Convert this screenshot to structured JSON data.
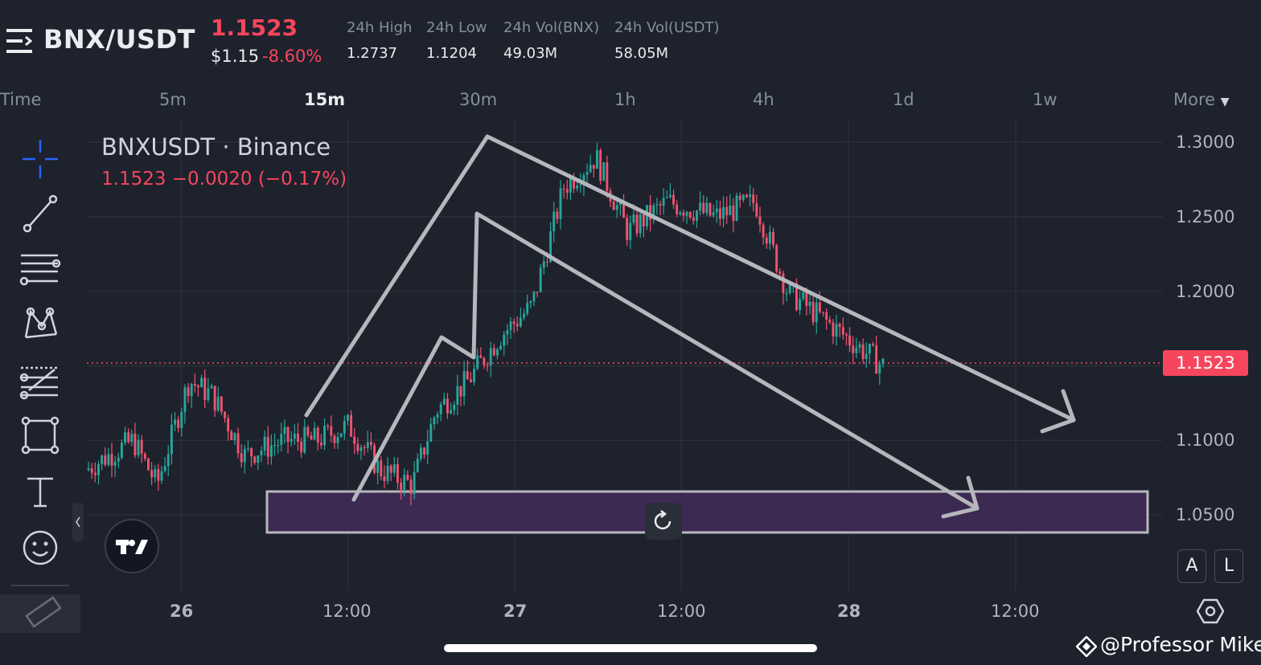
{
  "header": {
    "pair": "BNX/USDT",
    "last_price": "1.1523",
    "usd_price": "$1.15",
    "change_pct": "-8.60%",
    "stats": [
      {
        "label": "24h High",
        "value": "1.2737"
      },
      {
        "label": "24h Low",
        "value": "1.1204"
      },
      {
        "label": "24h Vol(BNX)",
        "value": "49.03M"
      },
      {
        "label": "24h Vol(USDT)",
        "value": "58.05M"
      }
    ]
  },
  "timeframes": {
    "items": [
      "Time",
      "5m",
      "15m",
      "30m",
      "1h",
      "4h",
      "1d",
      "1w"
    ],
    "active": "15m",
    "more_label": "More"
  },
  "toolbar": {
    "tools": [
      "crosshair-icon",
      "trend-line-icon",
      "fib-lines-icon",
      "pattern-icon",
      "prediction-icon",
      "rectangle-icon",
      "text-icon",
      "emoji-icon",
      "ruler-icon"
    ]
  },
  "chart": {
    "symbol_label": "BNXUSDT · Binance",
    "ohlc_line": "1.1523  −0.0020 (−0.17%)",
    "current_price_tag": "1.1523",
    "scale_buttons": [
      "A",
      "L"
    ],
    "watermark": "@Professor Mike",
    "colors": {
      "up": "#26a69a",
      "down": "#ef5370",
      "drawing": "#b6b6bd",
      "zone_fill": "#3d2a52",
      "background": "#1e222d"
    }
  },
  "chart_data": {
    "type": "candlestick",
    "y_ticks": [
      "1.3000",
      "1.2500",
      "1.2000",
      "1.1000",
      "1.0500"
    ],
    "x_ticks": [
      "26",
      "12:00",
      "27",
      "12:00",
      "28",
      "12:00"
    ],
    "ylim": [
      1.01,
      1.31
    ],
    "current_price": 1.1523,
    "anchors": [
      {
        "t": 0,
        "p": 1.08
      },
      {
        "t": 0.06,
        "p": 1.1
      },
      {
        "t": 0.09,
        "p": 1.07
      },
      {
        "t": 0.13,
        "p": 1.14
      },
      {
        "t": 0.16,
        "p": 1.13
      },
      {
        "t": 0.2,
        "p": 1.09
      },
      {
        "t": 0.25,
        "p": 1.1
      },
      {
        "t": 0.29,
        "p": 1.1
      },
      {
        "t": 0.33,
        "p": 1.11
      },
      {
        "t": 0.37,
        "p": 1.08
      },
      {
        "t": 0.41,
        "p": 1.07
      },
      {
        "t": 0.44,
        "p": 1.12
      },
      {
        "t": 0.48,
        "p": 1.14
      },
      {
        "t": 0.52,
        "p": 1.17
      },
      {
        "t": 0.56,
        "p": 1.19
      },
      {
        "t": 0.6,
        "p": 1.27
      },
      {
        "t": 0.64,
        "p": 1.29
      },
      {
        "t": 0.68,
        "p": 1.24
      },
      {
        "t": 0.73,
        "p": 1.26
      },
      {
        "t": 0.79,
        "p": 1.25
      },
      {
        "t": 0.84,
        "p": 1.26
      },
      {
        "t": 0.88,
        "p": 1.2
      },
      {
        "t": 1.0,
        "p": 1.15
      }
    ],
    "zone": {
      "top": 1.0685,
      "bottom": 1.0415
    }
  }
}
